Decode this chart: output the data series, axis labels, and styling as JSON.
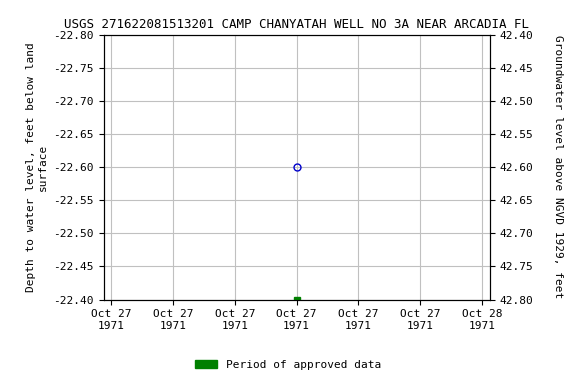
{
  "title": "USGS 271622081513201 CAMP CHANYATAH WELL NO 3A NEAR ARCADIA FL",
  "ylabel_left": "Depth to water level, feet below land\nsurface",
  "ylabel_right": "Groundwater level above NGVD 1929, feet",
  "ylim_left": [
    -22.4,
    -22.8
  ],
  "ylim_right": [
    42.8,
    42.4
  ],
  "yticks_left": [
    -22.4,
    -22.45,
    -22.5,
    -22.55,
    -22.6,
    -22.65,
    -22.7,
    -22.75,
    -22.8
  ],
  "yticks_right": [
    42.8,
    42.75,
    42.7,
    42.65,
    42.6,
    42.55,
    42.5,
    42.45,
    42.4
  ],
  "data_point_x": 12,
  "data_point_y": -22.6,
  "approved_point_x": 12,
  "approved_point_y": -22.4,
  "point_color": "#0000cc",
  "approved_point_color": "#008000",
  "background_color": "#ffffff",
  "grid_color": "#c0c0c0",
  "title_fontsize": 9,
  "axis_label_fontsize": 8,
  "tick_fontsize": 8,
  "legend_label": "Period of approved data",
  "legend_color": "#008000",
  "xlim": [
    -0.5,
    24.5
  ],
  "xtick_positions": [
    0,
    4,
    8,
    12,
    16,
    20,
    24
  ],
  "xtick_labels": [
    "Oct 27\n1971",
    "Oct 27\n1971",
    "Oct 27\n1971",
    "Oct 27\n1971",
    "Oct 27\n1971",
    "Oct 27\n1971",
    "Oct 28\n1971"
  ]
}
